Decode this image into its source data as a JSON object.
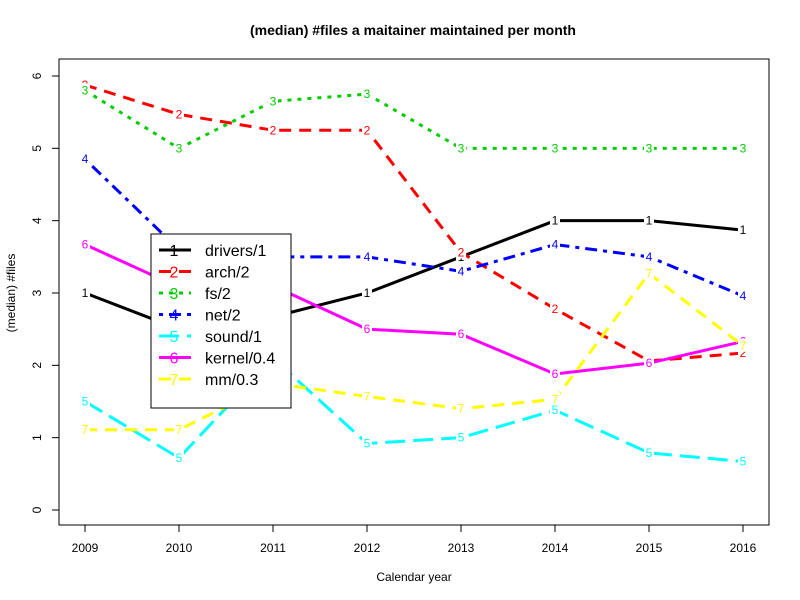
{
  "chart_data": {
    "type": "line",
    "title": "(median) #files a maitainer maintained per month",
    "xlabel": "Calendar year",
    "ylabel": "(median) #files",
    "x": [
      2009,
      2010,
      2011,
      2012,
      2013,
      2014,
      2015,
      2016
    ],
    "x_ticks": [
      "2009",
      "2010",
      "2011",
      "2012",
      "2013",
      "2014",
      "2015",
      "2016"
    ],
    "y_ticks": [
      "0",
      "1",
      "2",
      "3",
      "4",
      "5",
      "6"
    ],
    "ylim": [
      0,
      6
    ],
    "xlim": [
      2009,
      2016
    ],
    "grid": false,
    "legend_position": "center-left",
    "series": [
      {
        "name": "drivers/1",
        "glyph": "1",
        "color": "#000000",
        "dash": "solid",
        "values": [
          3.0,
          2.5,
          2.67,
          3.0,
          3.5,
          4.0,
          4.0,
          3.87
        ]
      },
      {
        "name": "arch/2",
        "glyph": "2",
        "color": "#ff0000",
        "dash": "dashed",
        "values": [
          5.875,
          5.47,
          5.25,
          5.25,
          3.56,
          2.78,
          2.06,
          2.17
        ]
      },
      {
        "name": "fs/2",
        "glyph": "3",
        "color": "#00cd00",
        "dash": "dotted",
        "values": [
          5.8,
          5.0,
          5.65,
          5.75,
          5.0,
          5.0,
          5.0,
          5.0
        ]
      },
      {
        "name": "net/2",
        "glyph": "4",
        "color": "#0000ff",
        "dash": "dotdash",
        "values": [
          4.85,
          3.6,
          3.5,
          3.5,
          3.3,
          3.67,
          3.5,
          2.96
        ]
      },
      {
        "name": "sound/1",
        "glyph": "5",
        "color": "#00ffff",
        "dash": "longdash",
        "values": [
          1.5,
          0.72,
          2.1,
          0.92,
          1.0,
          1.38,
          0.79,
          0.67
        ]
      },
      {
        "name": "kernel/0.4",
        "glyph": "6",
        "color": "#ff00ff",
        "dash": "solid",
        "values": [
          3.67,
          3.08,
          3.1,
          2.5,
          2.43,
          1.88,
          2.03,
          2.33
        ]
      },
      {
        "name": "mm/0.3",
        "glyph": "7",
        "color": "#ffff00",
        "dash": "dashed",
        "values": [
          1.11,
          1.11,
          1.75,
          1.57,
          1.4,
          1.53,
          3.27,
          2.27
        ]
      }
    ]
  }
}
